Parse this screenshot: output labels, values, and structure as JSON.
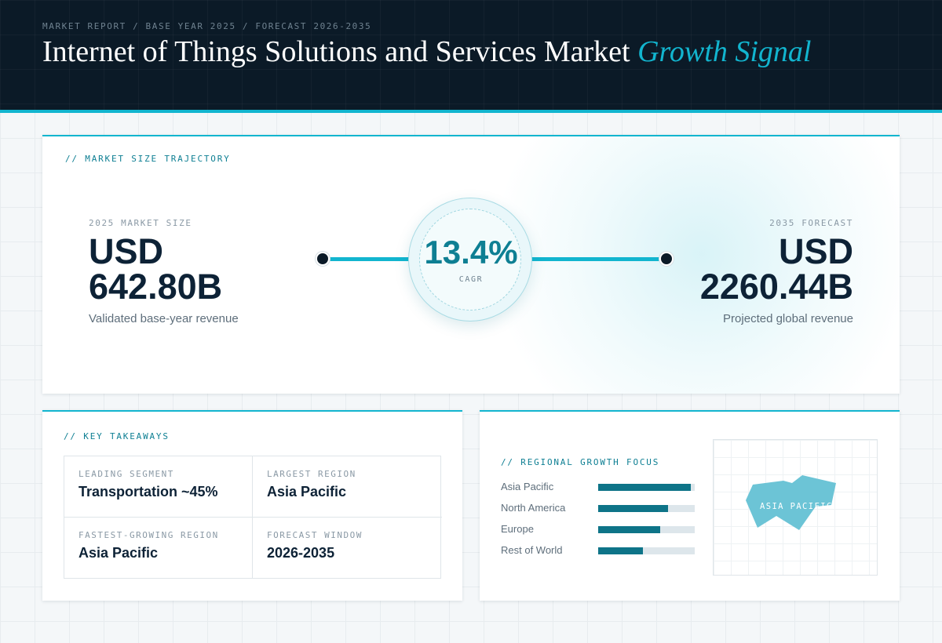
{
  "header": {
    "eyebrow": "MARKET REPORT / BASE YEAR 2025 / FORECAST 2026-2035",
    "title_main": "Internet of Things Solutions and Services Market",
    "title_accent": "Growth Signal"
  },
  "trajectory": {
    "section_label": "// MARKET SIZE TRAJECTORY",
    "base": {
      "label": "2025 MARKET SIZE",
      "currency": "USD",
      "value": "642.80B",
      "description": "Validated base-year revenue"
    },
    "cagr": {
      "value": "13.4%",
      "label": "CAGR"
    },
    "forecast": {
      "label": "2035 FORECAST",
      "currency": "USD",
      "value": "2260.44B",
      "description": "Projected global revenue"
    }
  },
  "takeaways": {
    "section_label": "// KEY TAKEAWAYS",
    "items": [
      {
        "label": "LEADING SEGMENT",
        "value": "Transportation ~45%"
      },
      {
        "label": "LARGEST REGION",
        "value": "Asia Pacific"
      },
      {
        "label": "FASTEST-GROWING REGION",
        "value": "Asia Pacific"
      },
      {
        "label": "FORECAST WINDOW",
        "value": "2026-2035"
      }
    ]
  },
  "regional": {
    "section_label": "// REGIONAL GROWTH FOCUS",
    "regions": [
      {
        "name": "Asia Pacific",
        "level": 0.96
      },
      {
        "name": "North America",
        "level": 0.72
      },
      {
        "name": "Europe",
        "level": 0.64
      },
      {
        "name": "Rest of World",
        "level": 0.46
      }
    ],
    "map_label": "ASIA PACIFIC",
    "map_color": "#6cc4d6"
  },
  "colors": {
    "accent": "#12b5cf",
    "accent_dark": "#0e7f93",
    "navy": "#0b1a27",
    "bar_fill": "#0e7488"
  }
}
